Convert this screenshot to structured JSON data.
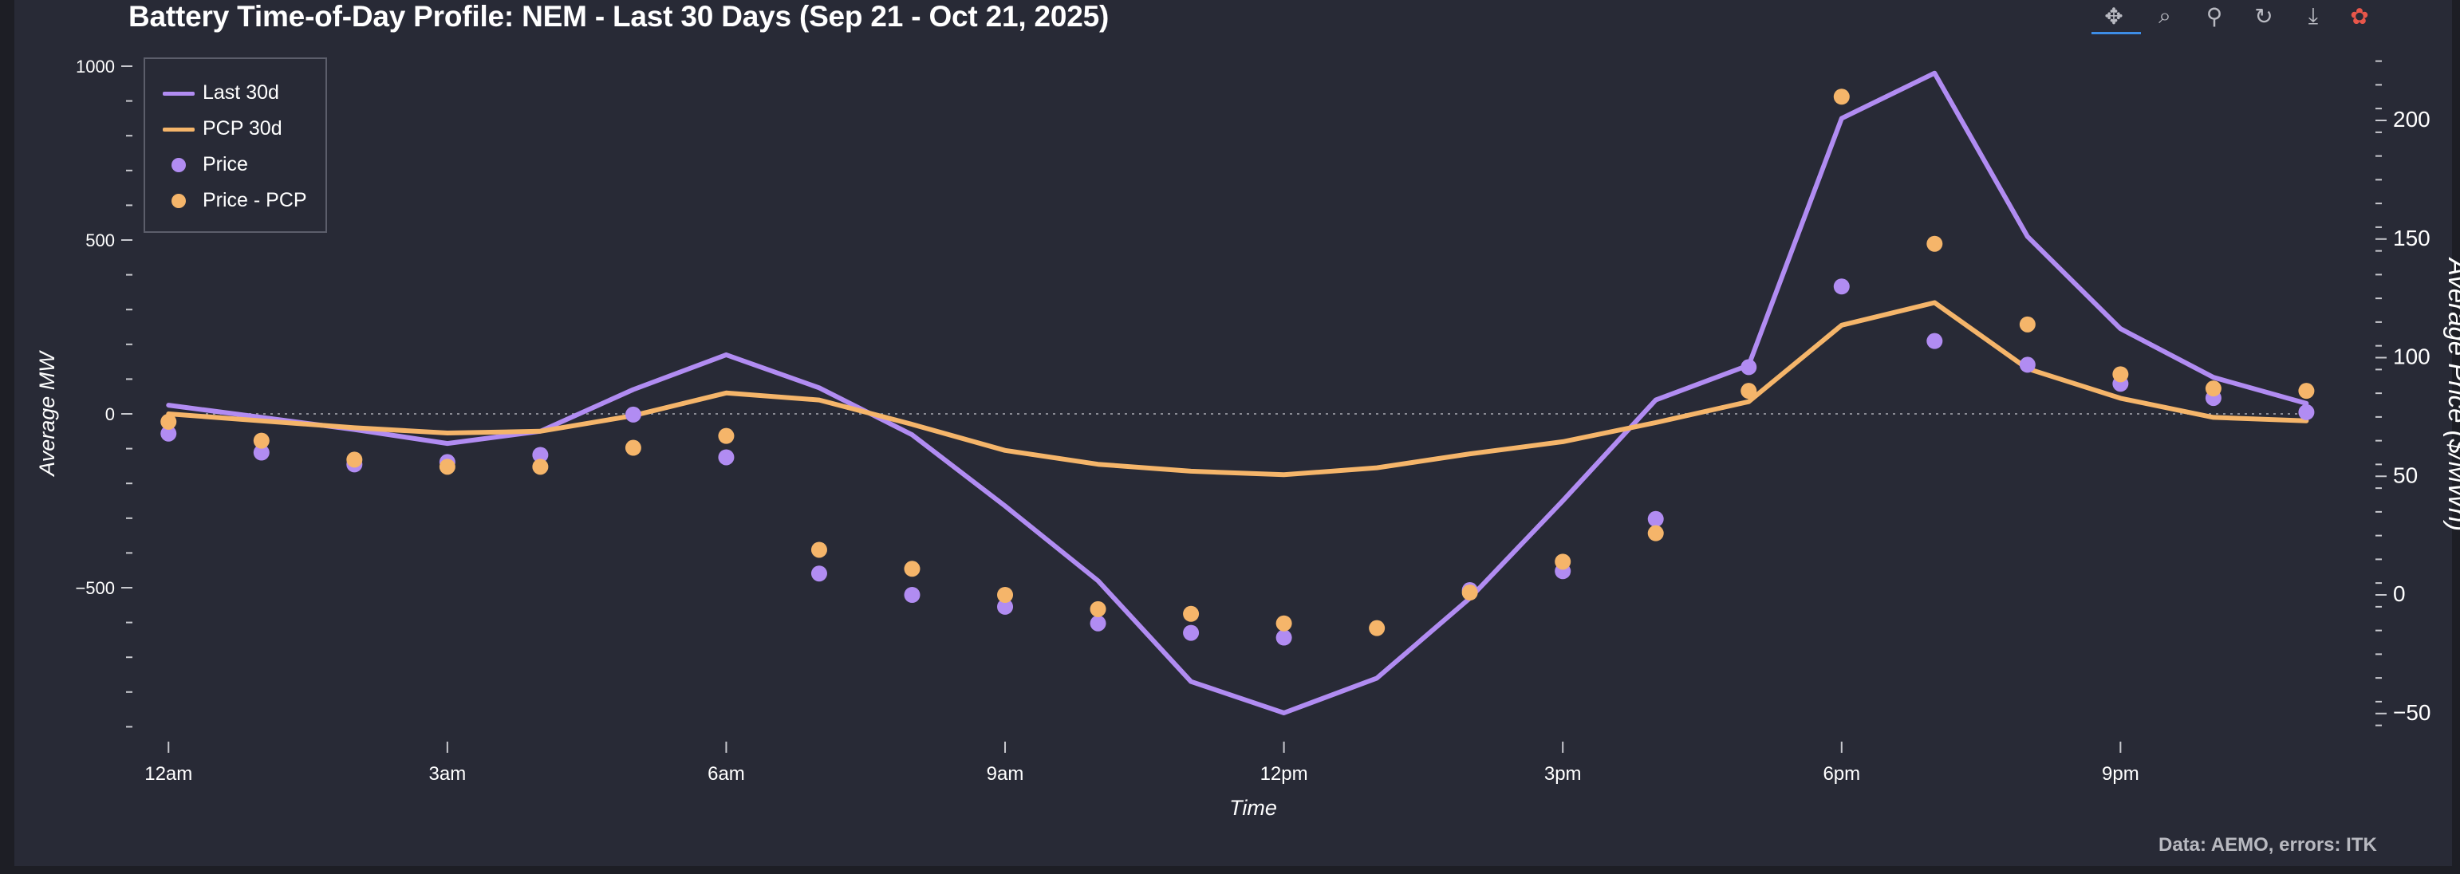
{
  "title": "Battery Time-of-Day Profile: NEM - Last 30 Days (Sep 21 - Oct 21, 2025)",
  "source_note": "Data: AEMO, errors: ITK",
  "toolbar": [
    {
      "name": "pan-icon",
      "glyph": "✥"
    },
    {
      "name": "box-zoom-icon",
      "glyph": "⌕"
    },
    {
      "name": "hover-icon",
      "glyph": "⚲"
    },
    {
      "name": "reset-icon",
      "glyph": "↻"
    },
    {
      "name": "save-icon",
      "glyph": "⤓"
    },
    {
      "name": "bokeh-logo-icon",
      "glyph": "✿"
    }
  ],
  "colors": {
    "background": "#282a36",
    "frame": "#1d1e25",
    "text": "#ffffff",
    "axis": "#c8c9cf",
    "zero_line": "#8a8b94",
    "last30d": "#b18cf2",
    "pcp30d": "#f5b56a",
    "price": "#b18cf2",
    "price_pcp": "#f5b56a",
    "toolbar_active": "#3d8de6"
  },
  "chart_data": {
    "type": "line",
    "title": "Battery Time-of-Day Profile: NEM - Last 30 Days (Sep 21 - Oct 21, 2025)",
    "xlabel": "Time",
    "ylabel_left": "Average MW",
    "ylabel_right": "Average Price ($/MWh)",
    "x_hours": [
      0,
      1,
      2,
      3,
      4,
      5,
      6,
      7,
      8,
      9,
      10,
      11,
      12,
      13,
      14,
      15,
      16,
      17,
      18,
      19,
      20,
      21,
      22,
      23
    ],
    "x_tick_hours": [
      0,
      3,
      6,
      9,
      12,
      15,
      18,
      21
    ],
    "x_tick_labels": [
      "12am",
      "3am",
      "6am",
      "9am",
      "12pm",
      "3pm",
      "6pm",
      "9pm"
    ],
    "xlim": [
      -0.5,
      23.7
    ],
    "ylim_left": [
      -920,
      1020
    ],
    "ylim_right": [
      -55,
      230
    ],
    "y_left_ticks": [
      -500,
      0,
      500,
      1000
    ],
    "y_right_ticks": [
      -50,
      0,
      50,
      100,
      150,
      200
    ],
    "zero_line": true,
    "legend": {
      "placement": "top-left",
      "entries": [
        {
          "label": "Last 30d",
          "kind": "line",
          "color": "#b18cf2"
        },
        {
          "label": "PCP 30d",
          "kind": "line",
          "color": "#f5b56a"
        },
        {
          "label": "Price",
          "kind": "dot",
          "color": "#b18cf2"
        },
        {
          "label": "Price - PCP",
          "kind": "dot",
          "color": "#f5b56a"
        }
      ]
    },
    "series": [
      {
        "name": "Last 30d",
        "axis": "left",
        "kind": "line",
        "color": "#b18cf2",
        "values": [
          25,
          -10,
          -45,
          -85,
          -50,
          70,
          170,
          75,
          -60,
          -265,
          -480,
          -770,
          -860,
          -760,
          -530,
          -250,
          40,
          140,
          850,
          980,
          510,
          245,
          105,
          30
        ]
      },
      {
        "name": "PCP 30d",
        "axis": "left",
        "kind": "line",
        "color": "#f5b56a",
        "values": [
          0,
          -20,
          -40,
          -55,
          -50,
          -5,
          60,
          40,
          -30,
          -105,
          -145,
          -165,
          -175,
          -155,
          -115,
          -80,
          -25,
          35,
          255,
          320,
          130,
          45,
          -10,
          -20
        ]
      },
      {
        "name": "Price",
        "axis": "right",
        "kind": "scatter",
        "color": "#b18cf2",
        "values": [
          68,
          60,
          55,
          56,
          59,
          76,
          58,
          9,
          0,
          -5,
          -12,
          -16,
          -18,
          null,
          2,
          10,
          32,
          96,
          130,
          107,
          97,
          89,
          83,
          77
        ]
      },
      {
        "name": "Price - PCP",
        "axis": "right",
        "kind": "scatter",
        "color": "#f5b56a",
        "values": [
          73,
          65,
          57,
          54,
          54,
          62,
          67,
          19,
          11,
          0,
          -6,
          -8,
          -12,
          -14,
          1,
          14,
          26,
          86,
          210,
          148,
          114,
          93,
          87,
          86
        ]
      }
    ]
  }
}
